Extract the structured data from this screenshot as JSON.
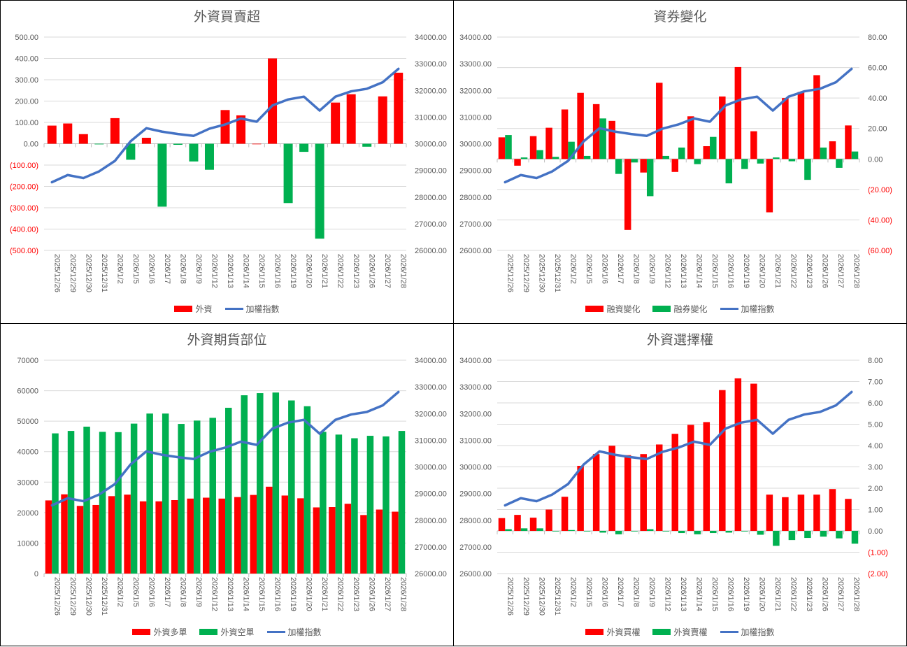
{
  "colors": {
    "red": "#FF0000",
    "green": "#00B050",
    "line": "#4472C4",
    "grid": "#D9D9D9",
    "neg_label": "#FF0000"
  },
  "chart_data": [
    {
      "type": "bar+line",
      "title": "外資買賣超",
      "categories": [
        "2025/12/26",
        "2025/12/29",
        "2025/12/30",
        "2025/12/31",
        "2026/1/2",
        "2026/1/5",
        "2026/1/6",
        "2026/1/7",
        "2026/1/8",
        "2026/1/9",
        "2026/1/12",
        "2026/1/13",
        "2026/1/14",
        "2026/1/15",
        "2026/1/16",
        "2026/1/19",
        "2026/1/20",
        "2026/1/21",
        "2026/1/22",
        "2026/1/23",
        "2026/1/26",
        "2026/1/27",
        "2026/1/28"
      ],
      "bar_axis": "left",
      "bar_range": [
        -500,
        500
      ],
      "bar_step": 100,
      "bar_decimals": 2,
      "line_range": [
        26000,
        34000
      ],
      "line_step": 1000,
      "bar_color_by_sign": true,
      "bars": [
        {
          "name": "外資",
          "values": [
            85,
            95,
            45,
            -3,
            120,
            -75,
            28,
            -295,
            -5,
            -83,
            -122,
            158,
            133,
            0,
            400,
            -278,
            -38,
            -445,
            193,
            232,
            -14,
            222,
            333
          ]
        }
      ],
      "line": {
        "name": "加權指數",
        "values": [
          28557,
          28826,
          28713,
          28965,
          29357,
          30096,
          30583,
          30452,
          30365,
          30296,
          30565,
          30722,
          30948,
          30826,
          31435,
          31661,
          31765,
          31243,
          31765,
          31965,
          32061,
          32304,
          32809
        ]
      },
      "legend": [
        "外資",
        "加權指數"
      ],
      "legend_placement": "bottom"
    },
    {
      "type": "bar+line",
      "title": "資券變化",
      "categories": [
        "2025/12/26",
        "2025/12/29",
        "2025/12/30",
        "2025/12/31",
        "2026/1/2",
        "2026/1/5",
        "2026/1/6",
        "2026/1/7",
        "2026/1/8",
        "2026/1/9",
        "2026/1/12",
        "2026/1/13",
        "2026/1/14",
        "2026/1/15",
        "2026/1/16",
        "2026/1/19",
        "2026/1/20",
        "2026/1/21",
        "2026/1/22",
        "2026/1/23",
        "2026/1/26",
        "2026/1/27",
        "2026/1/28"
      ],
      "bar_axis": "right",
      "bar_range": [
        -60,
        80
      ],
      "bar_step": 20,
      "bar_decimals": 2,
      "line_range": [
        26000,
        34000
      ],
      "line_step": 1000,
      "bars": [
        {
          "name": "融資變化",
          "color": "red",
          "values": [
            14.2,
            -4.4,
            15,
            20.5,
            32.5,
            43.4,
            36,
            25,
            -46.6,
            -8.9,
            50,
            -8.5,
            28,
            8.4,
            41,
            60.3,
            18.2,
            -35,
            40,
            44,
            55,
            11.6,
            22
          ]
        },
        {
          "name": "融券變化",
          "color": "green",
          "values": [
            15.7,
            1,
            5.8,
            1.4,
            11.3,
            2,
            26.6,
            -9.8,
            -2.3,
            -24.4,
            2,
            7.5,
            -3.4,
            14.5,
            -16,
            -6.6,
            -3,
            1,
            -1.5,
            -13.7,
            7.5,
            -5.8,
            4.9
          ]
        }
      ],
      "line": {
        "name": "加權指數",
        "values": [
          28557,
          28826,
          28713,
          28965,
          29357,
          30096,
          30583,
          30452,
          30365,
          30296,
          30565,
          30722,
          30948,
          30826,
          31435,
          31661,
          31765,
          31243,
          31765,
          31965,
          32061,
          32304,
          32809
        ]
      },
      "legend": [
        "融資變化",
        "融券變化",
        "加權指數"
      ],
      "legend_placement": "bottom"
    },
    {
      "type": "bar+line",
      "title": "外資期貨部位",
      "categories": [
        "2025/12/26",
        "2025/12/29",
        "2025/12/30",
        "2025/12/31",
        "2026/1/2",
        "2026/1/5",
        "2026/1/6",
        "2026/1/7",
        "2026/1/8",
        "2026/1/9",
        "2026/1/12",
        "2026/1/13",
        "2026/1/14",
        "2026/1/15",
        "2026/1/16",
        "2026/1/19",
        "2026/1/20",
        "2026/1/21",
        "2026/1/22",
        "2026/1/23",
        "2026/1/26",
        "2026/1/27",
        "2026/1/28"
      ],
      "bar_axis": "left",
      "bar_range": [
        0,
        70000
      ],
      "bar_step": 10000,
      "bar_decimals": 0,
      "line_range": [
        26000,
        34000
      ],
      "line_step": 1000,
      "bars": [
        {
          "name": "外資多單",
          "color": "red",
          "values": [
            24000,
            26000,
            22200,
            22500,
            25400,
            25900,
            23700,
            23700,
            24100,
            24600,
            24900,
            24600,
            25100,
            25800,
            28500,
            25600,
            24700,
            21700,
            21800,
            22900,
            19200,
            21000,
            20300
          ]
        },
        {
          "name": "外資空單",
          "color": "green",
          "values": [
            46000,
            46800,
            48200,
            46500,
            46400,
            49200,
            52500,
            52500,
            49100,
            50200,
            51100,
            54400,
            58500,
            59200,
            59400,
            56800,
            54900,
            46500,
            45600,
            44400,
            45200,
            45000,
            46800
          ]
        }
      ],
      "line": {
        "name": "加權指數",
        "values": [
          28557,
          28826,
          28713,
          28965,
          29357,
          30096,
          30583,
          30452,
          30365,
          30296,
          30565,
          30722,
          30948,
          30826,
          31435,
          31661,
          31765,
          31243,
          31765,
          31965,
          32061,
          32304,
          32809
        ]
      },
      "legend": [
        "外資多單",
        "外資空單",
        "加權指數"
      ],
      "legend_placement": "bottom"
    },
    {
      "type": "bar+line",
      "title": "外資選擇權",
      "categories": [
        "2025/12/26",
        "2025/12/29",
        "2025/12/30",
        "2025/12/31",
        "2026/1/2",
        "2026/1/5",
        "2026/1/6",
        "2026/1/7",
        "2026/1/8",
        "2026/1/9",
        "2026/1/12",
        "2026/1/13",
        "2026/1/14",
        "2026/1/15",
        "2026/1/16",
        "2026/1/19",
        "2026/1/20",
        "2026/1/21",
        "2026/1/22",
        "2026/1/23",
        "2026/1/26",
        "2026/1/27",
        "2026/1/28"
      ],
      "bar_axis": "right",
      "bar_range": [
        -2,
        8
      ],
      "bar_step": 1,
      "bar_decimals": 2,
      "line_range": [
        26000,
        34000
      ],
      "line_step": 1000,
      "bars": [
        {
          "name": "外資買權",
          "color": "red",
          "values": [
            0.6,
            0.75,
            0.62,
            1.0,
            1.6,
            3.05,
            3.6,
            3.99,
            3.55,
            3.6,
            4.05,
            4.55,
            4.97,
            5.1,
            6.6,
            7.15,
            6.9,
            1.7,
            1.58,
            1.7,
            1.7,
            1.96,
            1.5
          ]
        },
        {
          "name": "外資賣權",
          "color": "green",
          "values": [
            0.08,
            0.12,
            0.12,
            -0.02,
            0.04,
            0,
            -0.08,
            -0.16,
            0,
            0.08,
            0,
            -0.1,
            -0.16,
            -0.1,
            -0.08,
            -0.02,
            -0.18,
            -0.7,
            -0.43,
            -0.33,
            -0.27,
            -0.35,
            -0.6
          ]
        }
      ],
      "line": {
        "name": "加權指數",
        "values": [
          28557,
          28826,
          28713,
          28965,
          29357,
          30096,
          30583,
          30452,
          30365,
          30296,
          30565,
          30722,
          30948,
          30826,
          31435,
          31661,
          31765,
          31243,
          31765,
          31965,
          32061,
          32304,
          32809
        ]
      },
      "legend": [
        "外資買權",
        "外資賣權",
        "加權指數"
      ],
      "legend_placement": "bottom"
    }
  ]
}
